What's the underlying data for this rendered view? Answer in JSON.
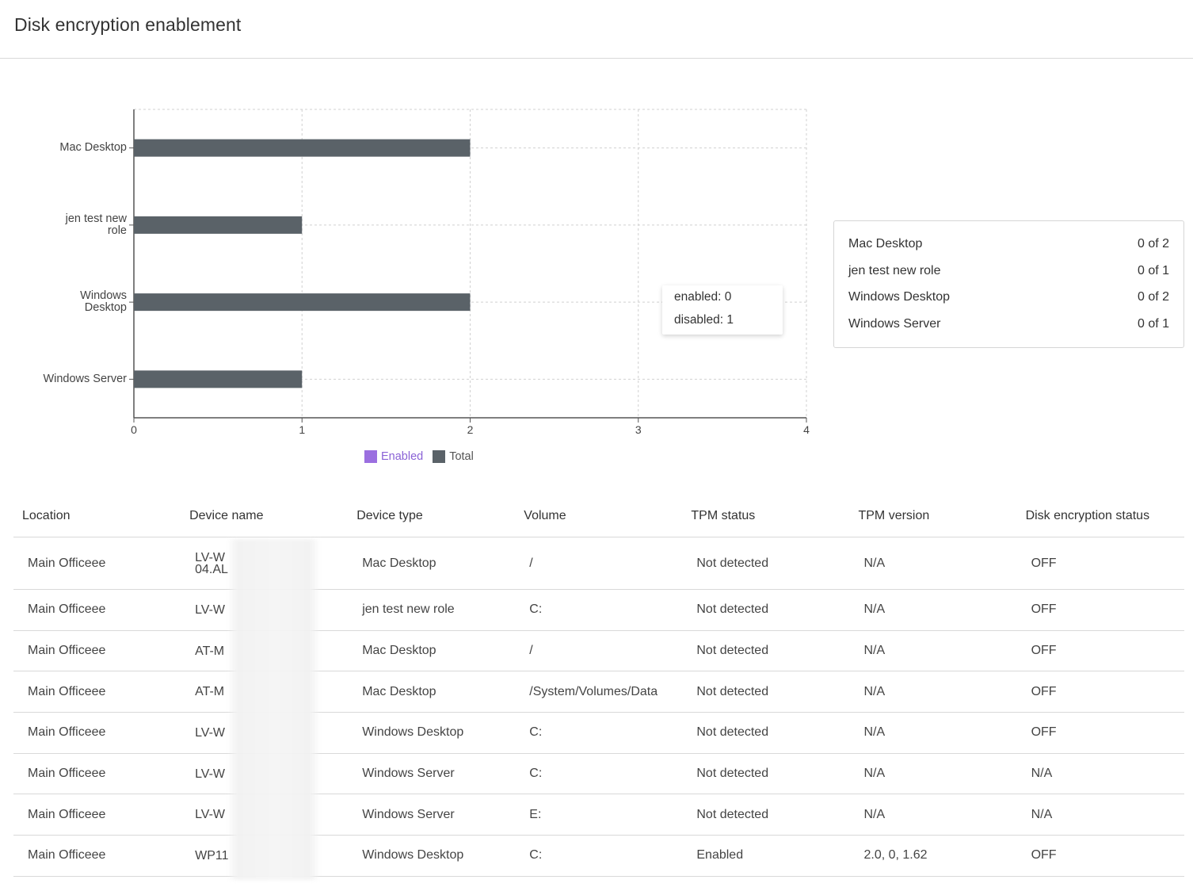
{
  "page": {
    "title": "Disk encryption enablement"
  },
  "chart_data": {
    "type": "bar",
    "orientation": "horizontal",
    "categories": [
      "Mac Desktop",
      "jen test new role",
      "Windows Desktop",
      "Windows Server"
    ],
    "category_labels": [
      [
        "Mac Desktop"
      ],
      [
        "jen test new",
        "role"
      ],
      [
        "Windows",
        "Desktop"
      ],
      [
        "Windows Server"
      ]
    ],
    "series": [
      {
        "name": "Enabled",
        "values": [
          0,
          0,
          0,
          0
        ],
        "color": "#9b6fe0"
      },
      {
        "name": "Total",
        "values": [
          2,
          1,
          2,
          1
        ],
        "color": "#5a6268"
      }
    ],
    "xlim": [
      0,
      4
    ],
    "xticks": [
      "0",
      "1",
      "2",
      "3",
      "4"
    ],
    "grid": true,
    "legend_position": "bottom"
  },
  "tooltip": {
    "enabled": "enabled: 0",
    "disabled": "disabled: 1"
  },
  "legend": [
    {
      "label": "Enabled",
      "color": "#9b6fe0",
      "text_color": "#8a62d6"
    },
    {
      "label": "Total",
      "color": "#5a6268",
      "text_color": "#555"
    }
  ],
  "summary": [
    {
      "label": "Mac Desktop",
      "value": "0 of 2"
    },
    {
      "label": "jen test new role",
      "value": "0 of 1"
    },
    {
      "label": "Windows Desktop",
      "value": "0 of 2"
    },
    {
      "label": "Windows Server",
      "value": "0 of 1"
    }
  ],
  "table": {
    "headers": [
      "Location",
      "Device name",
      "Device type",
      "Volume",
      "TPM status",
      "TPM version",
      "Disk encryption status"
    ],
    "rows": [
      {
        "location": "Main Officeee",
        "device_name": "LV-W",
        "device_name_line2": "04.AL",
        "device_type": "Mac Desktop",
        "volume": "/",
        "tpm_status": "Not detected",
        "tpm_version": "N/A",
        "encryption": "OFF"
      },
      {
        "location": "Main Officeee",
        "device_name": "LV-W",
        "device_name_line2": "",
        "device_type": "jen test new role",
        "volume": "C:",
        "tpm_status": "Not detected",
        "tpm_version": "N/A",
        "encryption": "OFF"
      },
      {
        "location": "Main Officeee",
        "device_name": "AT-M",
        "device_name_line2": "",
        "device_type": "Mac Desktop",
        "volume": "/",
        "tpm_status": "Not detected",
        "tpm_version": "N/A",
        "encryption": "OFF"
      },
      {
        "location": "Main Officeee",
        "device_name": "AT-M",
        "device_name_line2": "",
        "device_type": "Mac Desktop",
        "volume": "/System/Volumes/Data",
        "tpm_status": "Not detected",
        "tpm_version": "N/A",
        "encryption": "OFF"
      },
      {
        "location": "Main Officeee",
        "device_name": "LV-W",
        "device_name_line2": "",
        "device_type": "Windows Desktop",
        "volume": "C:",
        "tpm_status": "Not detected",
        "tpm_version": "N/A",
        "encryption": "OFF"
      },
      {
        "location": "Main Officeee",
        "device_name": "LV-W",
        "device_name_line2": "",
        "device_type": "Windows Server",
        "volume": "C:",
        "tpm_status": "Not detected",
        "tpm_version": "N/A",
        "encryption": "N/A"
      },
      {
        "location": "Main Officeee",
        "device_name": "LV-W",
        "device_name_line2": "",
        "device_type": "Windows Server",
        "volume": "E:",
        "tpm_status": "Not detected",
        "tpm_version": "N/A",
        "encryption": "N/A"
      },
      {
        "location": "Main Officeee",
        "device_name": "WP11",
        "device_name_line2": "",
        "device_type": "Windows Desktop",
        "volume": "C:",
        "tpm_status": "Enabled",
        "tpm_version": "2.0, 0, 1.62",
        "encryption": "OFF"
      }
    ]
  }
}
